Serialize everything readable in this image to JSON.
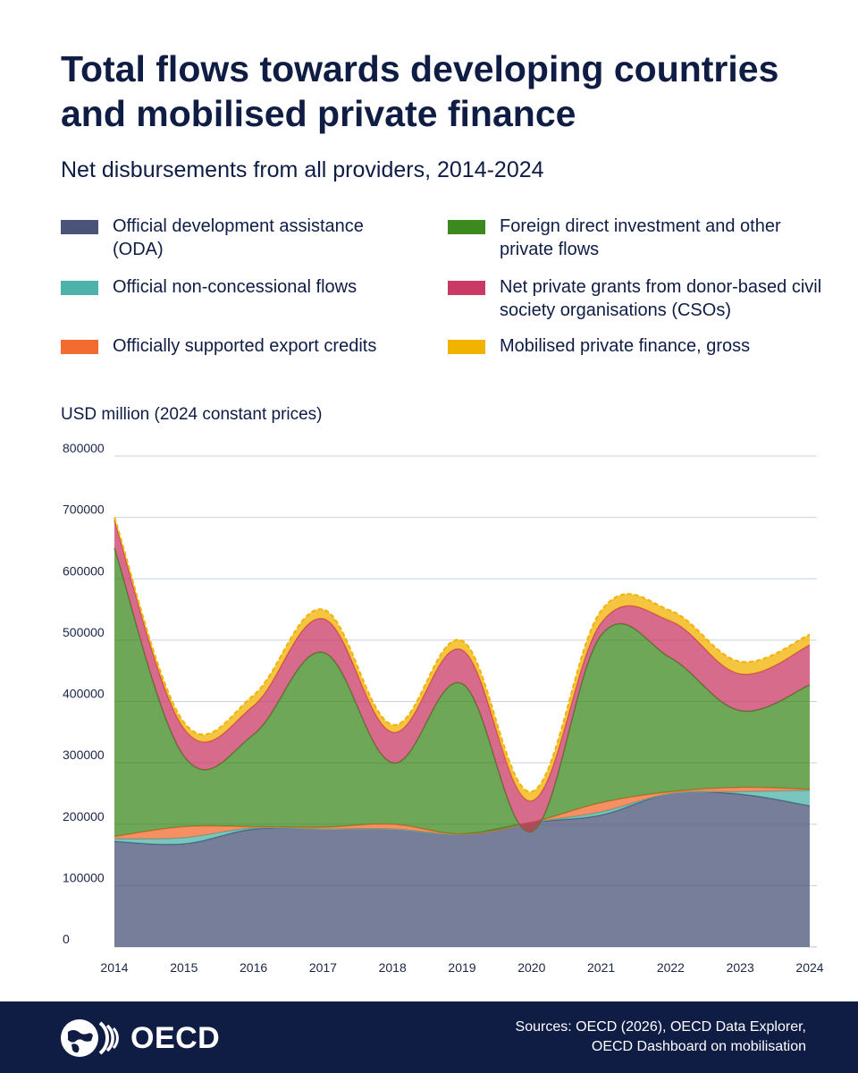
{
  "header": {
    "title": "Total flows towards developing countries and mobilised private finance",
    "subtitle": "Net disbursements from all providers, 2014-2024"
  },
  "legend": [
    {
      "label": "Official development assistance (ODA)",
      "color": "#4a5378"
    },
    {
      "label": "Foreign direct investment and other private flows",
      "color": "#3c8a1f"
    },
    {
      "label": "Official non-concessional flows",
      "color": "#4db3aa"
    },
    {
      "label": "Net private grants from donor-based civil society organisations (CSOs)",
      "color": "#c93a65"
    },
    {
      "label": "Officially supported export credits",
      "color": "#f26b30"
    },
    {
      "label": "Mobilised private finance, gross",
      "color": "#f2b200"
    }
  ],
  "chart_data": {
    "type": "area",
    "stacked": true,
    "ylabel": "USD million (2024 constant prices)",
    "ylim": [
      0,
      800000
    ],
    "yticks": [
      "0",
      "100000",
      "200000",
      "300000",
      "400000",
      "500000",
      "600000",
      "700000",
      "800000"
    ],
    "yticks_values": [
      0,
      100000,
      200000,
      300000,
      400000,
      500000,
      600000,
      700000,
      800000
    ],
    "x": [
      "2014",
      "2015",
      "2016",
      "2017",
      "2018",
      "2019",
      "2020",
      "2021",
      "2022",
      "2023",
      "2024"
    ],
    "grid": true,
    "series": [
      {
        "name": "Official development assistance (ODA)",
        "color": "#4a5378",
        "values": [
          172000,
          168000,
          192000,
          192000,
          192000,
          184000,
          203000,
          215000,
          250000,
          249000,
          230000
        ]
      },
      {
        "name": "Official non-concessional flows",
        "color": "#4db3aa",
        "values": [
          4000,
          10000,
          2000,
          0,
          0,
          0,
          0,
          5000,
          0,
          4000,
          25000
        ]
      },
      {
        "name": "Officially supported export credits",
        "color": "#f26b30",
        "values": [
          4000,
          18000,
          2000,
          3000,
          8000,
          0,
          0,
          15000,
          3000,
          7000,
          2000
        ]
      },
      {
        "name": "Foreign direct investment and other private flows",
        "color": "#3c8a1f",
        "values": [
          470000,
          115000,
          150000,
          285000,
          100000,
          245000,
          -15000,
          273000,
          218000,
          125000,
          170000
        ]
      },
      {
        "name": "Net private grants from donor-based civil society organisations (CSOs)",
        "color": "#c93a65",
        "values": [
          45000,
          45000,
          47000,
          55000,
          50000,
          55000,
          50000,
          20000,
          60000,
          60000,
          65000
        ]
      },
      {
        "name": "Mobilised private finance, gross",
        "color": "#f2b200",
        "values": [
          5000,
          10000,
          17000,
          15000,
          12000,
          15000,
          15000,
          20000,
          17000,
          20000,
          17000
        ]
      }
    ]
  },
  "footer": {
    "brand": "OECD",
    "sources_line1": "Sources: OECD (2026), OECD Data Explorer,",
    "sources_line2": "OECD Dashboard on mobilisation"
  }
}
